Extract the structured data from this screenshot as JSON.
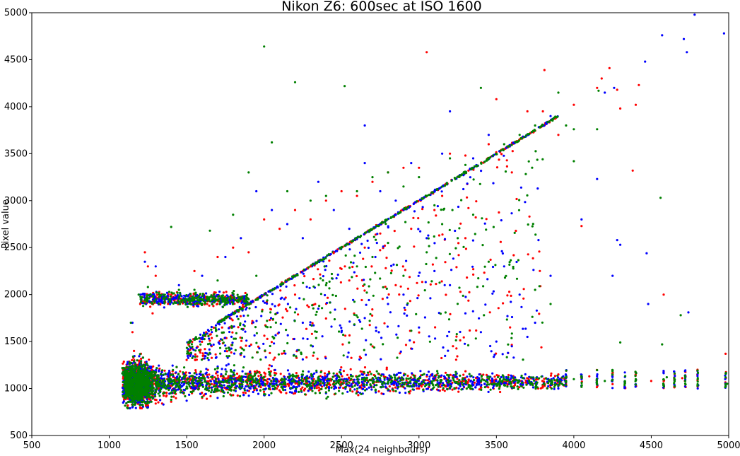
{
  "chart_data": {
    "type": "scatter",
    "title": "Nikon Z6:  600sec at ISO 1600",
    "xlabel": "Max(24 neighbours)",
    "ylabel": "Pixel value",
    "xlim": [
      500,
      5000
    ],
    "ylim": [
      500,
      5000
    ],
    "xticks": [
      "500",
      "1000",
      "1500",
      "2000",
      "2500",
      "3000",
      "3500",
      "4000",
      "4500",
      "5000"
    ],
    "yticks": [
      "500",
      "1000",
      "1500",
      "2000",
      "2500",
      "3000",
      "3500",
      "4000",
      "4500",
      "5000"
    ],
    "grid": false,
    "legend": "none",
    "series_colors": [
      "#ff0000",
      "#0000ff",
      "#008000"
    ],
    "series": [
      {
        "color": "#ff0000",
        "points": [
          [
            1120,
            820
          ],
          [
            1200,
            800
          ],
          [
            1250,
            820
          ],
          [
            1300,
            840
          ],
          [
            1400,
            860
          ],
          [
            1600,
            900
          ],
          [
            1800,
            930
          ],
          [
            2200,
            950
          ],
          [
            2600,
            970
          ],
          [
            3000,
            1000
          ],
          [
            3400,
            1010
          ],
          [
            3800,
            1030
          ],
          [
            1150,
            1600
          ],
          [
            1200,
            1900
          ],
          [
            1250,
            2300
          ],
          [
            1230,
            2450
          ],
          [
            1300,
            2200
          ],
          [
            1400,
            2000
          ],
          [
            1550,
            2250
          ],
          [
            1700,
            2400
          ],
          [
            1800,
            2500
          ],
          [
            1900,
            2450
          ],
          [
            2000,
            2800
          ],
          [
            2100,
            2700
          ],
          [
            2200,
            2900
          ],
          [
            2300,
            2800
          ],
          [
            2400,
            3000
          ],
          [
            2500,
            3100
          ],
          [
            2600,
            3050
          ],
          [
            2700,
            3200
          ],
          [
            2800,
            3300
          ],
          [
            2900,
            3350
          ],
          [
            3000,
            3350
          ],
          [
            3050,
            4580
          ],
          [
            3200,
            3500
          ],
          [
            3300,
            3480
          ],
          [
            3450,
            3600
          ],
          [
            3500,
            4080
          ],
          [
            3700,
            3950
          ],
          [
            3800,
            3950
          ],
          [
            3810,
            4390
          ],
          [
            3900,
            3700
          ],
          [
            4000,
            4020
          ],
          [
            4050,
            2730
          ],
          [
            4150,
            4200
          ],
          [
            4180,
            4300
          ],
          [
            4230,
            4410
          ],
          [
            4280,
            4180
          ],
          [
            4300,
            3980
          ],
          [
            4380,
            3320
          ],
          [
            4400,
            4020
          ],
          [
            4420,
            4230
          ],
          [
            4580,
            2000
          ],
          [
            4980,
            1370
          ],
          [
            2200,
            2000
          ],
          [
            2300,
            2300
          ],
          [
            2450,
            2450
          ],
          [
            2550,
            2150
          ],
          [
            2650,
            2500
          ],
          [
            2750,
            2650
          ],
          [
            2850,
            2100
          ],
          [
            2950,
            2700
          ],
          [
            3100,
            2900
          ],
          [
            3150,
            3050
          ],
          [
            3300,
            2600
          ],
          [
            3600,
            3300
          ],
          [
            3900,
            1150
          ],
          [
            4100,
            1130
          ],
          [
            4500,
            1080
          ],
          [
            4700,
            1110
          ],
          [
            1160,
            1400
          ],
          [
            1280,
            1800
          ]
        ]
      },
      {
        "color": "#0000ff",
        "points": [
          [
            1090,
            850
          ],
          [
            1150,
            800
          ],
          [
            1250,
            800
          ],
          [
            1350,
            830
          ],
          [
            1500,
            870
          ],
          [
            1700,
            900
          ],
          [
            2000,
            930
          ],
          [
            2400,
            950
          ],
          [
            2800,
            980
          ],
          [
            3200,
            1000
          ],
          [
            3600,
            1010
          ],
          [
            3900,
            1000
          ],
          [
            1150,
            1700
          ],
          [
            1200,
            2000
          ],
          [
            1230,
            2350
          ],
          [
            1300,
            2300
          ],
          [
            1450,
            2100
          ],
          [
            1600,
            2200
          ],
          [
            1750,
            2400
          ],
          [
            1850,
            2600
          ],
          [
            1950,
            3100
          ],
          [
            2050,
            2900
          ],
          [
            2150,
            2750
          ],
          [
            2250,
            2600
          ],
          [
            2350,
            3200
          ],
          [
            2450,
            2900
          ],
          [
            2550,
            2700
          ],
          [
            2650,
            3400
          ],
          [
            2750,
            3100
          ],
          [
            2850,
            3000
          ],
          [
            2950,
            3400
          ],
          [
            3050,
            2600
          ],
          [
            3150,
            3500
          ],
          [
            3200,
            3950
          ],
          [
            3350,
            3450
          ],
          [
            3450,
            3700
          ],
          [
            3550,
            2300
          ],
          [
            3650,
            2000
          ],
          [
            3750,
            1700
          ],
          [
            3850,
            2200
          ],
          [
            3850,
            3900
          ],
          [
            4050,
            2800
          ],
          [
            4150,
            3230
          ],
          [
            4200,
            4150
          ],
          [
            4260,
            4200
          ],
          [
            4280,
            2580
          ],
          [
            4300,
            2530
          ],
          [
            4250,
            2200
          ],
          [
            4460,
            4480
          ],
          [
            4470,
            2440
          ],
          [
            4480,
            1900
          ],
          [
            4570,
            4760
          ],
          [
            4710,
            4720
          ],
          [
            4730,
            4580
          ],
          [
            4740,
            1810
          ],
          [
            4780,
            4980
          ],
          [
            4970,
            4780
          ],
          [
            2650,
            3800
          ],
          [
            2250,
            1700
          ],
          [
            2350,
            1850
          ],
          [
            2500,
            1600
          ],
          [
            2650,
            1750
          ],
          [
            2800,
            1900
          ],
          [
            2900,
            2000
          ],
          [
            3000,
            1650
          ],
          [
            3100,
            2250
          ],
          [
            3200,
            2100
          ],
          [
            3300,
            1800
          ],
          [
            3400,
            1600
          ],
          [
            3500,
            1500
          ],
          [
            3600,
            1450
          ],
          [
            3700,
            1550
          ]
        ]
      },
      {
        "color": "#008000",
        "points": [
          [
            1100,
            900
          ],
          [
            1150,
            860
          ],
          [
            1250,
            850
          ],
          [
            1400,
            880
          ],
          [
            1600,
            910
          ],
          [
            2000,
            940
          ],
          [
            2400,
            960
          ],
          [
            2800,
            990
          ],
          [
            3200,
            1010
          ],
          [
            3600,
            1020
          ],
          [
            3900,
            1030
          ],
          [
            1140,
            1700
          ],
          [
            1190,
            2000
          ],
          [
            1250,
            2080
          ],
          [
            1350,
            2000
          ],
          [
            1400,
            2720
          ],
          [
            1450,
            2050
          ],
          [
            1550,
            2050
          ],
          [
            1650,
            2680
          ],
          [
            1700,
            2150
          ],
          [
            1800,
            2850
          ],
          [
            1900,
            3300
          ],
          [
            1950,
            2200
          ],
          [
            2000,
            4640
          ],
          [
            2050,
            3620
          ],
          [
            2150,
            3100
          ],
          [
            2200,
            4260
          ],
          [
            2300,
            3000
          ],
          [
            2400,
            3050
          ],
          [
            2520,
            4220
          ],
          [
            2600,
            3100
          ],
          [
            2700,
            3250
          ],
          [
            2800,
            3300
          ],
          [
            2900,
            3150
          ],
          [
            3000,
            3250
          ],
          [
            3100,
            2950
          ],
          [
            3200,
            3450
          ],
          [
            3300,
            3380
          ],
          [
            3400,
            4200
          ],
          [
            3550,
            3600
          ],
          [
            3650,
            3700
          ],
          [
            3750,
            3800
          ],
          [
            3900,
            4150
          ],
          [
            3950,
            3800
          ],
          [
            4000,
            3760
          ],
          [
            4000,
            3420
          ],
          [
            4150,
            3760
          ],
          [
            4160,
            4170
          ],
          [
            4300,
            1490
          ],
          [
            4560,
            3030
          ],
          [
            4570,
            1470
          ],
          [
            4690,
            1780
          ],
          [
            2400,
            2100
          ],
          [
            2500,
            2500
          ],
          [
            2600,
            2300
          ],
          [
            2700,
            2400
          ],
          [
            2800,
            2550
          ],
          [
            2900,
            2200
          ],
          [
            3050,
            2450
          ],
          [
            3150,
            2750
          ],
          [
            3250,
            2600
          ],
          [
            3350,
            2850
          ],
          [
            3450,
            2350
          ],
          [
            3750,
            2050
          ],
          [
            3850,
            1900
          ],
          [
            4000,
            1100
          ],
          [
            4200,
            1080
          ],
          [
            4400,
            1100
          ],
          [
            4600,
            1120
          ],
          [
            4800,
            1100
          ],
          [
            4990,
            1050
          ],
          [
            1180,
            1300
          ]
        ]
      }
    ]
  }
}
